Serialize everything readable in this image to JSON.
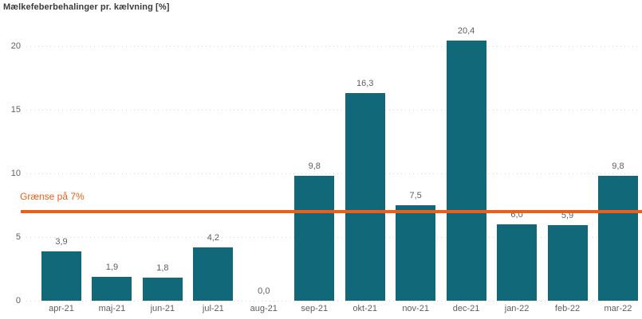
{
  "title": "Mælkefeberbehalinger pr. kælvning [%]",
  "reference_line": {
    "label": "Grænse på 7%",
    "value": 7,
    "color": "#E8601A"
  },
  "colors": {
    "bar": "#116878",
    "grid": "#D6D6D6",
    "axis_text": "#605E5C",
    "value_label_text": "#605E5C",
    "title_text": "#3B3A39",
    "background": "#FFFFFF"
  },
  "chart_data": {
    "type": "bar",
    "title": "Mælkefeberbehalinger pr. kælvning [%]",
    "categories": [
      "apr-21",
      "maj-21",
      "jun-21",
      "jul-21",
      "aug-21",
      "sep-21",
      "okt-21",
      "nov-21",
      "dec-21",
      "jan-22",
      "feb-22",
      "mar-22"
    ],
    "values": [
      3.9,
      1.9,
      1.8,
      4.2,
      0.0,
      9.8,
      16.3,
      7.5,
      20.4,
      6.0,
      5.9,
      9.8
    ],
    "value_labels": [
      "3,9",
      "1,9",
      "1,8",
      "4,2",
      "0,0",
      "9,8",
      "16,3",
      "7,5",
      "20,4",
      "6,0",
      "5,9",
      "9,8"
    ],
    "xlabel": "",
    "ylabel": "",
    "ylim": [
      0,
      21
    ],
    "yticks": [
      0,
      5,
      10,
      15,
      20
    ],
    "grid": "horizontal-dotted",
    "legend": "none",
    "annotations": [
      {
        "type": "hline",
        "y": 7,
        "label": "Grænse på 7%",
        "color": "#E8601A"
      }
    ]
  }
}
